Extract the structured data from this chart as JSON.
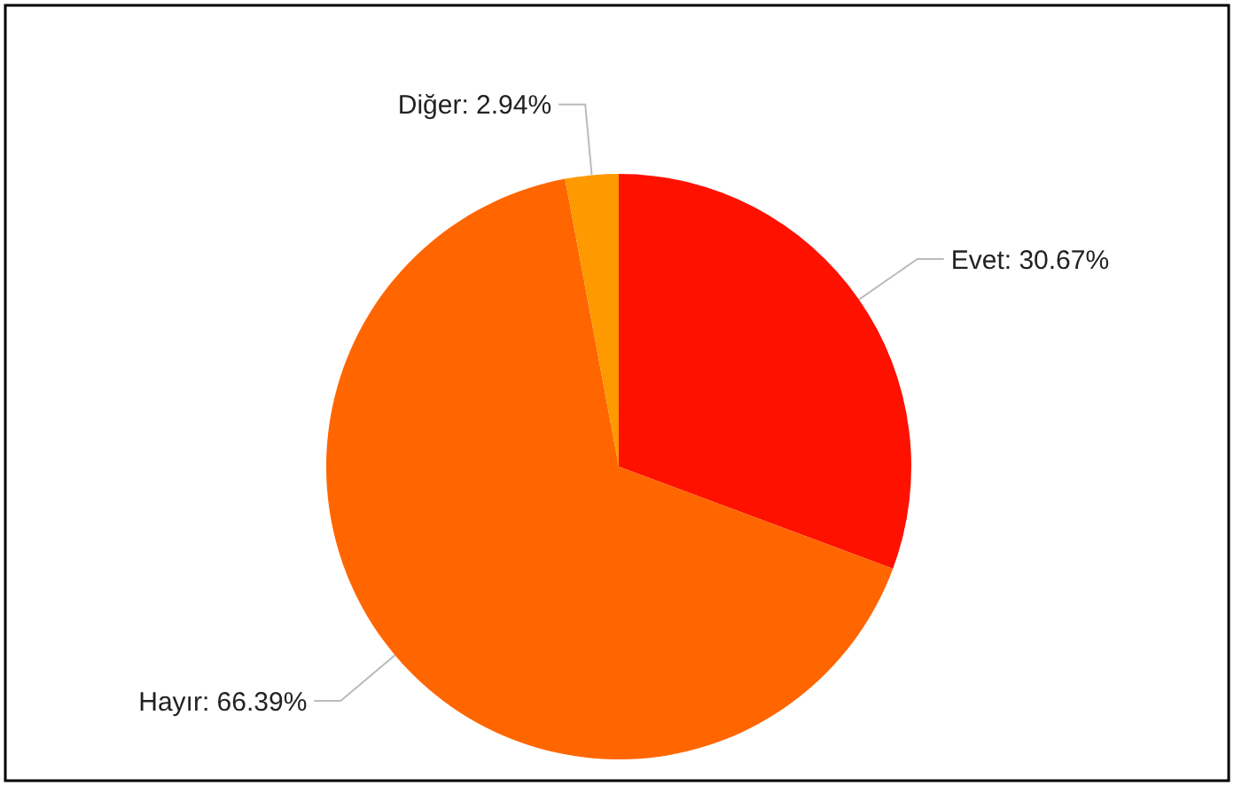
{
  "chart_data": {
    "type": "pie",
    "categories": [
      "Evet",
      "Hayır",
      "Diğer"
    ],
    "values": [
      30.67,
      66.39,
      2.94
    ],
    "colors": [
      "#ff1100",
      "#ff6600",
      "#ff9900"
    ],
    "value_labels": [
      "30.67%",
      "66.39%",
      "2.94%"
    ]
  }
}
